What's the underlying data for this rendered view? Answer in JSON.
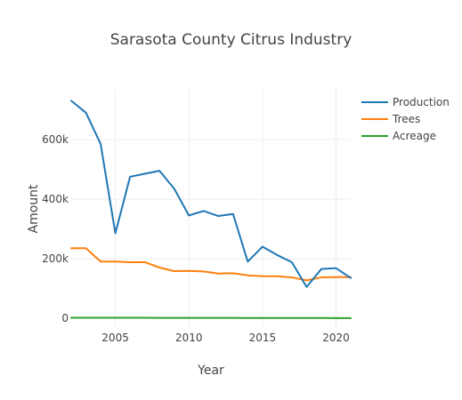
{
  "chart_data": {
    "type": "line",
    "title": "Sarasota County Citrus Industry",
    "xlabel": "Year",
    "ylabel": "Amount",
    "xlim": [
      2002,
      2021
    ],
    "ylim": [
      -30000,
      770000
    ],
    "x_ticks": [
      2005,
      2010,
      2015,
      2020
    ],
    "x_tick_labels": [
      "2005",
      "2010",
      "2015",
      "2020"
    ],
    "y_ticks": [
      0,
      200000,
      400000,
      600000
    ],
    "y_tick_labels": [
      "0",
      "200k",
      "400k",
      "600k"
    ],
    "grid": true,
    "legend_position": "top-right",
    "x": [
      2002,
      2003,
      2004,
      2005,
      2006,
      2007,
      2008,
      2009,
      2010,
      2011,
      2012,
      2013,
      2014,
      2015,
      2016,
      2017,
      2018,
      2019,
      2020,
      2021
    ],
    "series": [
      {
        "name": "Production",
        "color": "#1f77b4",
        "values": [
          730000,
          690000,
          585000,
          285000,
          475000,
          485000,
          495000,
          435000,
          345000,
          360000,
          343000,
          350000,
          190000,
          240000,
          212000,
          188000,
          105000,
          165000,
          168000,
          135000
        ]
      },
      {
        "name": "Trees",
        "color": "#ff7f0e",
        "values": [
          235000,
          235000,
          190000,
          190000,
          188000,
          188000,
          170000,
          158000,
          159000,
          157000,
          150000,
          151000,
          144000,
          141000,
          141000,
          137000,
          127000,
          137000,
          138000,
          138000
        ]
      },
      {
        "name": "Acreage",
        "color": "#2ca02c",
        "values": [
          1500,
          1500,
          1400,
          1300,
          1300,
          1200,
          1100,
          1000,
          900,
          900,
          850,
          800,
          700,
          650,
          600,
          550,
          500,
          450,
          400,
          350
        ]
      }
    ]
  }
}
